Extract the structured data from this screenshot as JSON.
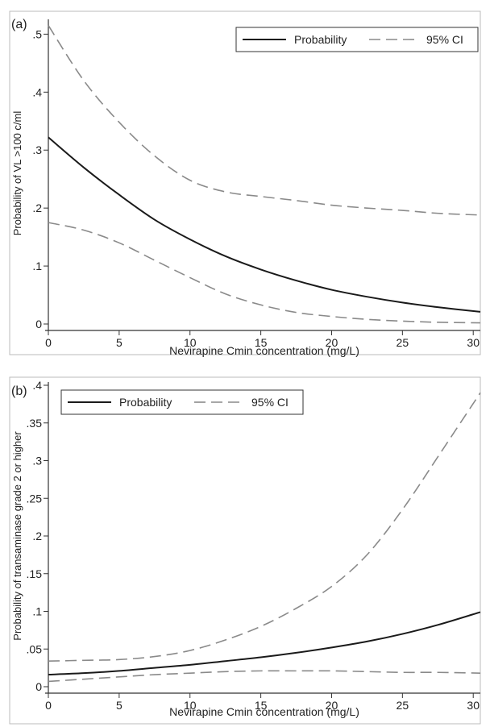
{
  "chart_data": [
    {
      "type": "line",
      "panel_label": "(a)",
      "xlabel": "Nevirapine Cmin concentration (mg/L)",
      "ylabel": "Probability of VL >100 c/ml",
      "xlim": [
        0,
        30.5
      ],
      "ylim": [
        0,
        0.52
      ],
      "x_ticks": [
        0,
        5,
        10,
        15,
        20,
        25,
        30
      ],
      "x_tick_labels": [
        "0",
        "5",
        "10",
        "15",
        "20",
        "25",
        "30"
      ],
      "y_ticks": [
        0,
        0.1,
        0.2,
        0.3,
        0.4,
        0.5
      ],
      "y_tick_labels": [
        "0",
        ".1",
        ".2",
        ".3",
        ".4",
        ".5"
      ],
      "grid": false,
      "legend_position": "top-right",
      "legend": [
        "Probability",
        "95% CI"
      ],
      "x": [
        0,
        2.5,
        5,
        7.5,
        10,
        12.5,
        15,
        17.5,
        20,
        22.5,
        25,
        27.5,
        30.5
      ],
      "series": [
        {
          "name": "Probability",
          "style": "solid",
          "values": [
            0.322,
            0.27,
            0.223,
            0.18,
            0.146,
            0.117,
            0.094,
            0.075,
            0.059,
            0.047,
            0.037,
            0.029,
            0.021
          ]
        },
        {
          "name": "95% CI",
          "bound": "upper",
          "style": "dashed",
          "values": [
            0.515,
            0.42,
            0.348,
            0.29,
            0.248,
            0.228,
            0.22,
            0.213,
            0.205,
            0.2,
            0.196,
            0.191,
            0.188
          ]
        },
        {
          "name": "95% CI",
          "bound": "lower",
          "style": "dashed",
          "values": [
            0.175,
            0.162,
            0.14,
            0.11,
            0.08,
            0.052,
            0.033,
            0.02,
            0.013,
            0.008,
            0.005,
            0.003,
            0.002
          ]
        }
      ]
    },
    {
      "type": "line",
      "panel_label": "(b)",
      "xlabel": "Nevirapine Cmin concentration (mg/L)",
      "ylabel": "Probability of transaminase grade 2 or higher",
      "xlim": [
        0,
        30.5
      ],
      "ylim": [
        0,
        0.4
      ],
      "x_ticks": [
        0,
        5,
        10,
        15,
        20,
        25,
        30
      ],
      "x_tick_labels": [
        "0",
        "5",
        "10",
        "15",
        "20",
        "25",
        "30"
      ],
      "y_ticks": [
        0,
        0.05,
        0.1,
        0.15,
        0.2,
        0.25,
        0.3,
        0.35,
        0.4
      ],
      "y_tick_labels": [
        "0",
        ".05",
        ".1",
        ".15",
        ".2",
        ".25",
        ".3",
        ".35",
        ".4"
      ],
      "grid": false,
      "legend_position": "top-left",
      "legend": [
        "Probability",
        "95% CI"
      ],
      "x": [
        0,
        2.5,
        5,
        7.5,
        10,
        12.5,
        15,
        17.5,
        20,
        22.5,
        25,
        27.5,
        30.5
      ],
      "series": [
        {
          "name": "Probability",
          "style": "solid",
          "values": [
            0.016,
            0.018,
            0.021,
            0.025,
            0.029,
            0.034,
            0.039,
            0.045,
            0.052,
            0.06,
            0.07,
            0.082,
            0.099
          ]
        },
        {
          "name": "95% CI",
          "bound": "upper",
          "style": "dashed",
          "values": [
            0.034,
            0.035,
            0.036,
            0.04,
            0.048,
            0.062,
            0.08,
            0.104,
            0.133,
            0.175,
            0.235,
            0.305,
            0.39
          ]
        },
        {
          "name": "95% CI",
          "bound": "lower",
          "style": "dashed",
          "values": [
            0.007,
            0.01,
            0.013,
            0.016,
            0.018,
            0.02,
            0.021,
            0.021,
            0.021,
            0.02,
            0.019,
            0.019,
            0.018
          ]
        }
      ]
    }
  ]
}
